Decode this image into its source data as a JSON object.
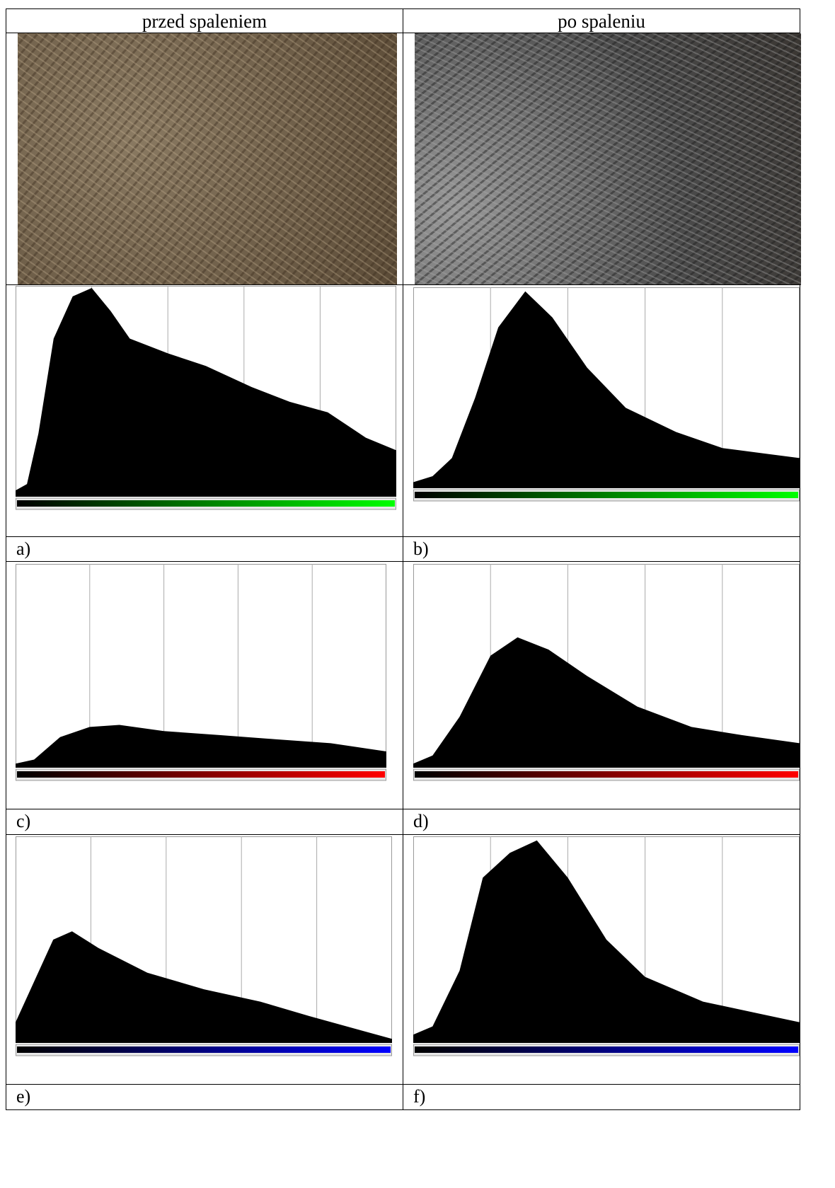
{
  "header": {
    "left": "przed spaleniem",
    "right": "po spaleniu"
  },
  "labels": [
    "a)",
    "b)",
    "c)",
    "d)",
    "e)",
    "f)"
  ]
}
